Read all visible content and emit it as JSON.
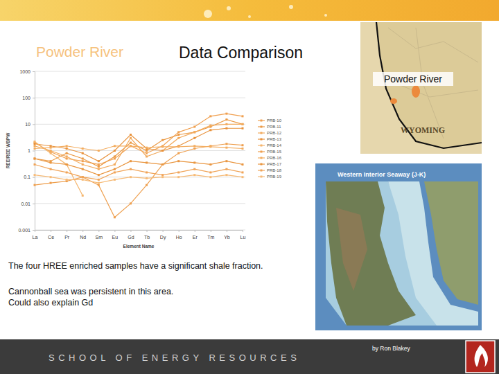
{
  "chart_data": {
    "type": "line",
    "y_label": "REE/REE WBPW",
    "x_label": "Element Name",
    "categories": [
      "La",
      "Ce",
      "Pr",
      "Nd",
      "Sm",
      "Eu",
      "Gd",
      "Tb",
      "Dy",
      "Ho",
      "Er",
      "Tm",
      "Yb",
      "Lu"
    ],
    "log": "y",
    "ylim": [
      0.001,
      1000
    ],
    "yticks": [
      0.001,
      0.01,
      0.1,
      1,
      10,
      100,
      1000
    ],
    "grid": true,
    "legend": "right",
    "marker": "square",
    "series": [
      {
        "name": "PRB-10",
        "color": "#f0a050",
        "values": [
          2,
          0.9,
          0.5,
          0.4,
          0.3,
          0.5,
          1.5,
          0.8,
          1.5,
          5,
          8,
          20,
          25,
          20
        ]
      },
      {
        "name": "PRB-11",
        "color": "#eb9a45",
        "values": [
          0.5,
          0.4,
          0.8,
          0.5,
          0.25,
          0.6,
          2,
          1,
          2.5,
          4,
          5,
          8,
          15,
          10
        ]
      },
      {
        "name": "PRB-12",
        "color": "#f2aa5c",
        "values": [
          1.5,
          1,
          0.6,
          0.3,
          0.2,
          0.3,
          3,
          0.6,
          1,
          3,
          5,
          9,
          10,
          10
        ]
      },
      {
        "name": "PRB-13",
        "color": "#e8923c",
        "values": [
          1.8,
          1.5,
          1.2,
          0.8,
          0.4,
          1,
          4,
          1.2,
          1,
          1.5,
          3,
          6,
          7,
          7
        ]
      },
      {
        "name": "PRB-14",
        "color": "#f5b56c",
        "values": [
          2.2,
          0.8,
          0.3,
          0.02,
          null,
          null,
          null,
          null,
          null,
          null,
          null,
          null,
          null,
          null
        ]
      },
      {
        "name": "PRB-15",
        "color": "#ee9f4e",
        "values": [
          0.05,
          0.06,
          0.07,
          0.1,
          0.05,
          0.003,
          0.01,
          0.05,
          0.3,
          0.8,
          1.2,
          1.5,
          1.8,
          1.6
        ]
      },
      {
        "name": "PRB-16",
        "color": "#f3ad60",
        "values": [
          1.2,
          1.3,
          1.5,
          1.2,
          1,
          1.5,
          1.5,
          1.3,
          1.4,
          1.4,
          1.5,
          1.4,
          1.3,
          1.2
        ]
      },
      {
        "name": "PRB-17",
        "color": "#e99640",
        "values": [
          0.5,
          0.35,
          0.3,
          0.2,
          0.12,
          0.2,
          0.4,
          0.35,
          0.3,
          0.4,
          0.35,
          0.3,
          0.4,
          0.3
        ]
      },
      {
        "name": "PRB-18",
        "color": "#f0a458",
        "values": [
          0.3,
          0.2,
          0.15,
          0.1,
          0.08,
          0.15,
          0.2,
          0.15,
          0.12,
          0.15,
          0.2,
          0.15,
          0.2,
          0.15
        ]
      },
      {
        "name": "PRB-19",
        "color": "#f6bb78",
        "values": [
          0.12,
          0.1,
          0.08,
          0.08,
          0.06,
          0.08,
          0.1,
          0.09,
          0.1,
          0.1,
          0.12,
          0.1,
          0.12,
          0.1
        ]
      }
    ]
  },
  "slide": {
    "title": "Powder River",
    "subtitle": "Data Comparison",
    "notes": [
      "The four HREE enriched samples have a significant shale fraction.",
      "Cannonball sea was persistent in this area.",
      "Could also explain Gd"
    ],
    "map": {
      "label": "Powder River",
      "state": "WYOMING"
    },
    "seaway_map": {
      "title": "Western Interior Seaway (J-K)",
      "credit": "by Ron Blakey"
    },
    "footer": "SCHOOL OF ENERGY RESOURCES"
  }
}
